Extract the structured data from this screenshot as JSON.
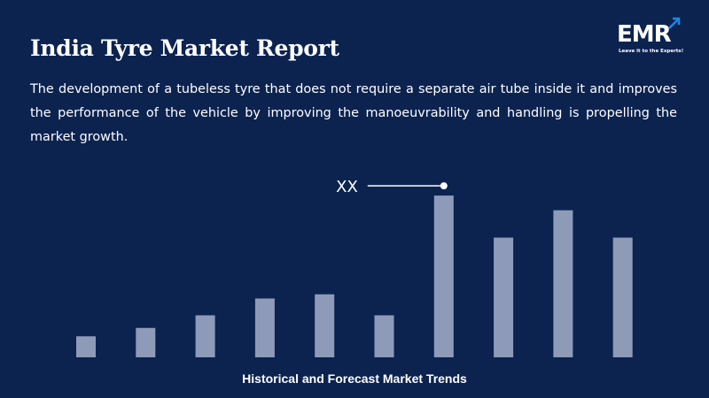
{
  "header": {
    "title": "India Tyre Market Report",
    "description": "The development of a tubeless tyre that does not require a separate air tube inside it and improves the performance of the vehicle by improving the manoeuvrability and handling is propelling the market growth."
  },
  "logo": {
    "text": "EMR",
    "tagline": "Leave it to the Experts!",
    "icon": "arrow-up-right-icon"
  },
  "colors": {
    "background": "#0c2350",
    "bar": "#8e9bb8",
    "text": "#ffffff"
  },
  "chart_data": {
    "type": "bar",
    "xlabel": "Historical and Forecast Market Trends",
    "values": [
      10,
      14,
      20,
      28,
      30,
      20,
      77,
      57,
      70,
      57
    ],
    "annotation": {
      "text": "XX",
      "bar_index": 6
    },
    "ylim": [
      0,
      80
    ],
    "grid": false
  }
}
